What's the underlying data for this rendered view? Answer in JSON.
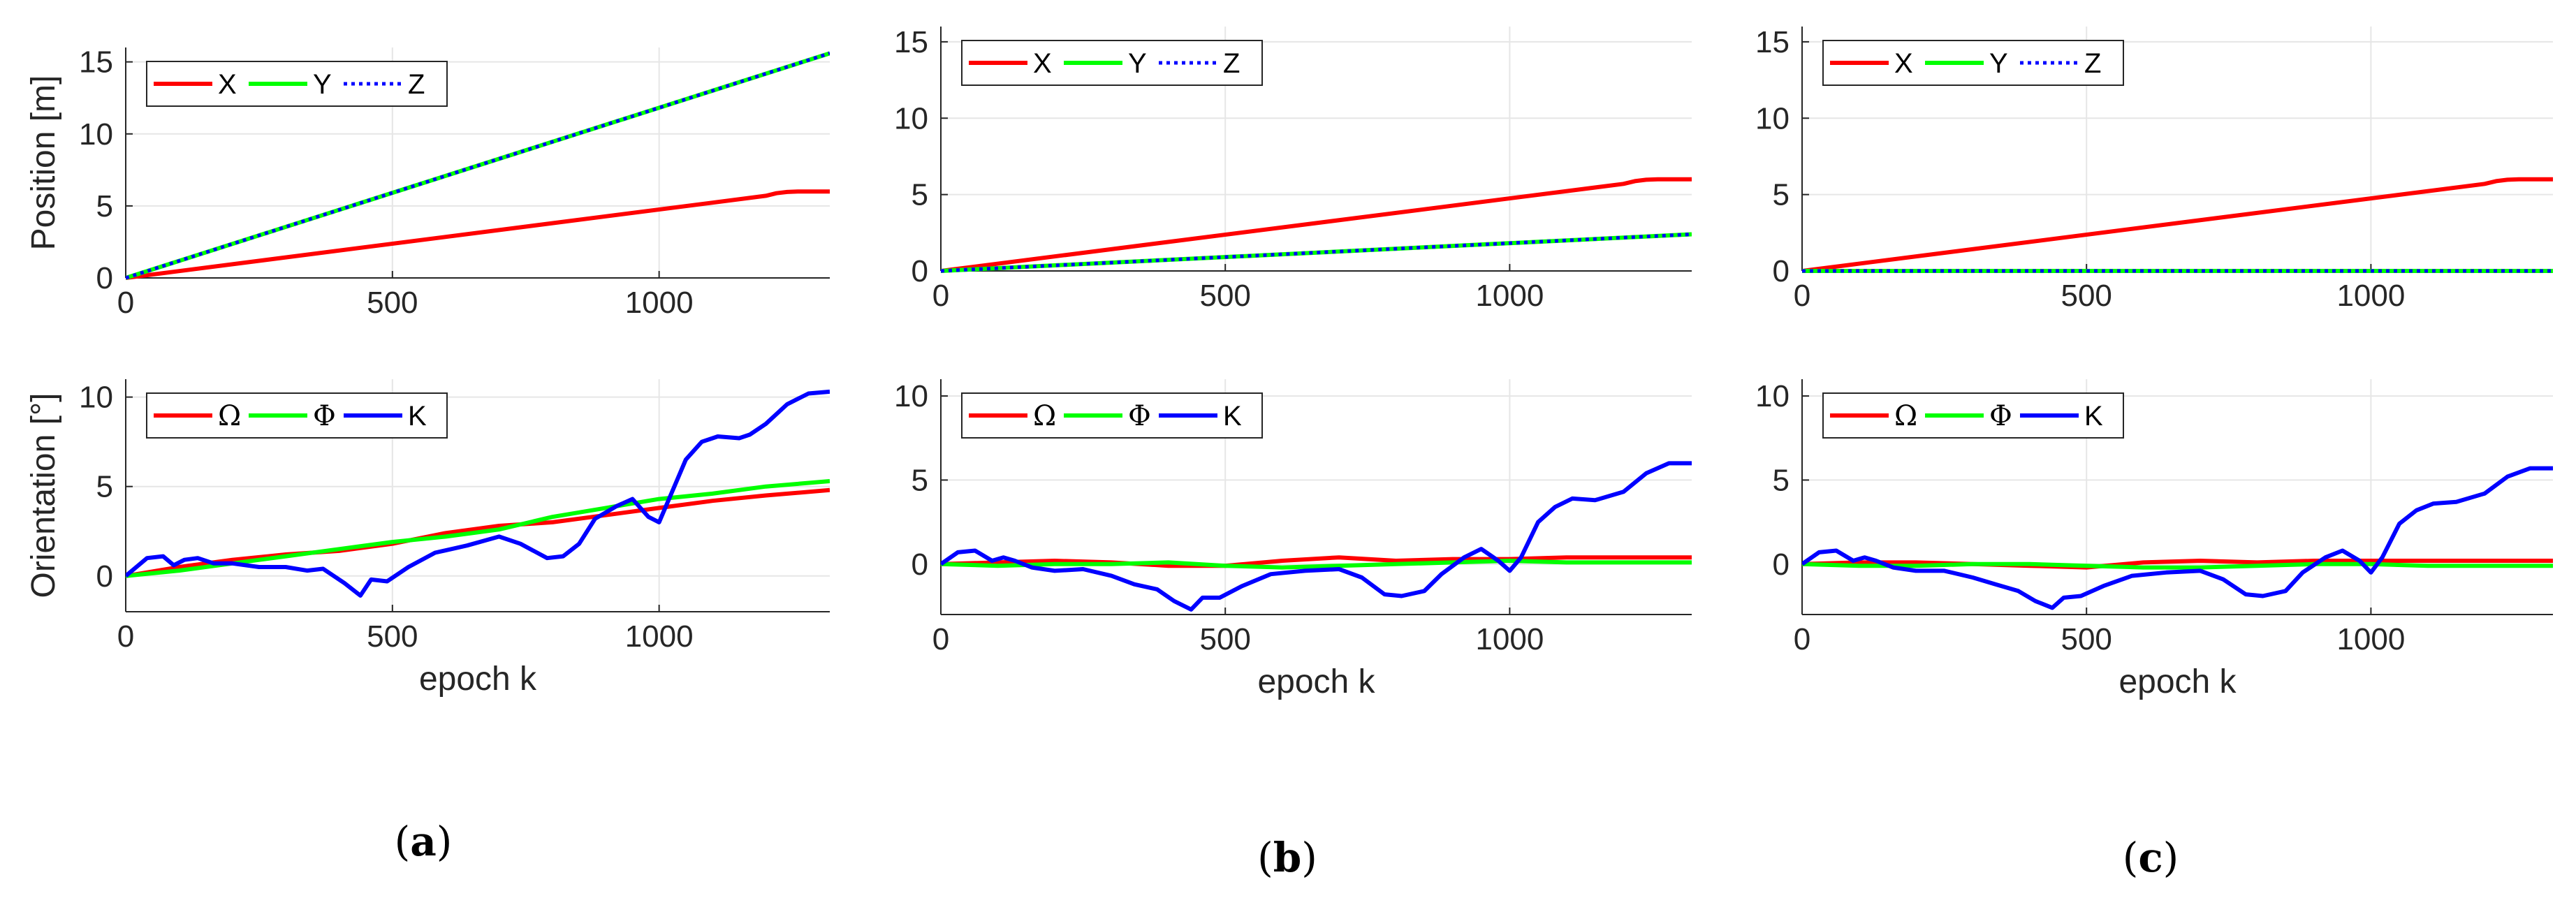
{
  "figure": {
    "captions": [
      "(a)",
      "(b)",
      "(c)"
    ],
    "caption_letters": [
      "a",
      "b",
      "c"
    ]
  },
  "chart_data": [
    {
      "id": "a-position",
      "type": "line",
      "column": 0,
      "row": 0,
      "ylabel": "Position [m]",
      "xlabel": "",
      "xlim": [
        0,
        1320
      ],
      "ylim": [
        0,
        16
      ],
      "xticks": [
        0,
        500,
        1000
      ],
      "yticks": [
        0,
        5,
        10,
        15
      ],
      "grid": true,
      "legend": "top-left",
      "series": [
        {
          "name": "X",
          "color": "#ff0000",
          "dash": "solid",
          "x": [
            0,
            1200,
            1220,
            1240,
            1260,
            1320
          ],
          "y": [
            0,
            5.7,
            5.88,
            5.97,
            6.0,
            6.0
          ]
        },
        {
          "name": "Y",
          "color": "#00ff00",
          "dash": "solid",
          "x": [
            0,
            1320
          ],
          "y": [
            0,
            15.6
          ]
        },
        {
          "name": "Z",
          "color": "#0000ff",
          "dash": "dotted",
          "x": [
            0,
            1320
          ],
          "y": [
            0,
            15.6
          ]
        }
      ]
    },
    {
      "id": "b-position",
      "type": "line",
      "column": 1,
      "row": 0,
      "ylabel": "",
      "xlabel": "",
      "xlim": [
        0,
        1320
      ],
      "ylim": [
        0,
        16
      ],
      "xticks": [
        0,
        500,
        1000
      ],
      "yticks": [
        0,
        5,
        10,
        15
      ],
      "grid": true,
      "legend": "top-left",
      "series": [
        {
          "name": "X",
          "color": "#ff0000",
          "dash": "solid",
          "x": [
            0,
            1200,
            1220,
            1240,
            1260,
            1320
          ],
          "y": [
            0,
            5.7,
            5.88,
            5.97,
            6.0,
            6.0
          ]
        },
        {
          "name": "Y",
          "color": "#00ff00",
          "dash": "solid",
          "x": [
            0,
            1320
          ],
          "y": [
            0,
            2.4
          ]
        },
        {
          "name": "Z",
          "color": "#0000ff",
          "dash": "dotted",
          "x": [
            0,
            1320
          ],
          "y": [
            0,
            2.4
          ]
        }
      ]
    },
    {
      "id": "c-position",
      "type": "line",
      "column": 2,
      "row": 0,
      "ylabel": "",
      "xlabel": "",
      "xlim": [
        0,
        1320
      ],
      "ylim": [
        0,
        16
      ],
      "xticks": [
        0,
        500,
        1000
      ],
      "yticks": [
        0,
        5,
        10,
        15
      ],
      "grid": true,
      "legend": "top-left",
      "series": [
        {
          "name": "X",
          "color": "#ff0000",
          "dash": "solid",
          "x": [
            0,
            1200,
            1220,
            1240,
            1260,
            1320
          ],
          "y": [
            0,
            5.7,
            5.88,
            5.97,
            6.0,
            6.0
          ]
        },
        {
          "name": "Y",
          "color": "#00ff00",
          "dash": "solid",
          "x": [
            0,
            1320
          ],
          "y": [
            0,
            0
          ]
        },
        {
          "name": "Z",
          "color": "#0000ff",
          "dash": "dotted",
          "x": [
            0,
            1320
          ],
          "y": [
            0,
            0
          ]
        }
      ]
    },
    {
      "id": "a-orientation",
      "type": "line",
      "column": 0,
      "row": 1,
      "ylabel": "Orientation [°]",
      "xlabel": "epoch k",
      "xlim": [
        0,
        1320
      ],
      "ylim": [
        -2,
        11
      ],
      "xticks": [
        0,
        500,
        1000
      ],
      "yticks": [
        0,
        5,
        10
      ],
      "grid": true,
      "legend": "top-left",
      "series": [
        {
          "name": "Ω",
          "color": "#ff0000",
          "dash": "solid",
          "x": [
            0,
            100,
            200,
            300,
            400,
            500,
            600,
            700,
            800,
            900,
            1000,
            1100,
            1200,
            1320
          ],
          "y": [
            0,
            0.5,
            0.9,
            1.2,
            1.4,
            1.8,
            2.4,
            2.8,
            3.0,
            3.4,
            3.8,
            4.2,
            4.5,
            4.8
          ]
        },
        {
          "name": "Φ",
          "color": "#00ff00",
          "dash": "solid",
          "x": [
            0,
            100,
            200,
            300,
            400,
            500,
            600,
            700,
            800,
            900,
            1000,
            1100,
            1200,
            1320
          ],
          "y": [
            0,
            0.3,
            0.7,
            1.1,
            1.5,
            1.9,
            2.2,
            2.6,
            3.3,
            3.8,
            4.3,
            4.6,
            5.0,
            5.3
          ]
        },
        {
          "name": "K",
          "color": "#0000ff",
          "dash": "solid",
          "x": [
            0,
            40,
            70,
            90,
            110,
            135,
            165,
            200,
            250,
            300,
            340,
            370,
            410,
            440,
            460,
            490,
            530,
            580,
            640,
            700,
            740,
            790,
            820,
            850,
            880,
            920,
            950,
            980,
            1000,
            1020,
            1050,
            1080,
            1110,
            1150,
            1170,
            1200,
            1240,
            1280,
            1320
          ],
          "y": [
            0,
            1.0,
            1.1,
            0.6,
            0.9,
            1.0,
            0.7,
            0.7,
            0.5,
            0.5,
            0.3,
            0.4,
            -0.4,
            -1.1,
            -0.2,
            -0.3,
            0.5,
            1.3,
            1.7,
            2.2,
            1.8,
            1.0,
            1.1,
            1.8,
            3.2,
            3.9,
            4.3,
            3.3,
            3.0,
            4.4,
            6.5,
            7.5,
            7.8,
            7.7,
            7.9,
            8.5,
            9.6,
            10.2,
            10.3
          ]
        }
      ]
    },
    {
      "id": "b-orientation",
      "type": "line",
      "column": 1,
      "row": 1,
      "ylabel": "",
      "xlabel": "epoch k",
      "xlim": [
        0,
        1320
      ],
      "ylim": [
        -3,
        11
      ],
      "xticks": [
        0,
        500,
        1000
      ],
      "yticks": [
        0,
        5,
        10
      ],
      "grid": true,
      "legend": "top-left",
      "series": [
        {
          "name": "Ω",
          "color": "#ff0000",
          "dash": "solid",
          "x": [
            0,
            100,
            200,
            300,
            400,
            500,
            600,
            700,
            800,
            900,
            1000,
            1100,
            1200,
            1320
          ],
          "y": [
            0,
            0.1,
            0.2,
            0.1,
            -0.1,
            -0.1,
            0.2,
            0.4,
            0.2,
            0.3,
            0.3,
            0.4,
            0.4,
            0.4
          ]
        },
        {
          "name": "Φ",
          "color": "#00ff00",
          "dash": "solid",
          "x": [
            0,
            100,
            200,
            300,
            400,
            500,
            600,
            700,
            800,
            900,
            1000,
            1100,
            1200,
            1320
          ],
          "y": [
            0,
            -0.1,
            0.0,
            0.0,
            0.1,
            -0.1,
            -0.2,
            -0.1,
            0.0,
            0.1,
            0.2,
            0.1,
            0.1,
            0.1
          ]
        },
        {
          "name": "K",
          "color": "#0000ff",
          "dash": "solid",
          "x": [
            0,
            30,
            60,
            90,
            110,
            130,
            160,
            200,
            250,
            300,
            340,
            380,
            410,
            440,
            460,
            490,
            530,
            580,
            640,
            700,
            740,
            780,
            810,
            850,
            880,
            920,
            950,
            980,
            1000,
            1020,
            1050,
            1080,
            1110,
            1150,
            1200,
            1240,
            1280,
            1320
          ],
          "y": [
            0,
            0.7,
            0.8,
            0.2,
            0.4,
            0.2,
            -0.2,
            -0.4,
            -0.3,
            -0.7,
            -1.2,
            -1.5,
            -2.2,
            -2.7,
            -2.0,
            -2.0,
            -1.3,
            -0.6,
            -0.4,
            -0.3,
            -0.8,
            -1.8,
            -1.9,
            -1.6,
            -0.6,
            0.4,
            0.9,
            0.2,
            -0.4,
            0.4,
            2.5,
            3.4,
            3.9,
            3.8,
            4.3,
            5.4,
            6.0,
            6.0
          ]
        }
      ]
    },
    {
      "id": "c-orientation",
      "type": "line",
      "column": 2,
      "row": 1,
      "ylabel": "",
      "xlabel": "epoch k",
      "xlim": [
        0,
        1320
      ],
      "ylim": [
        -3,
        11
      ],
      "xticks": [
        0,
        500,
        1000
      ],
      "yticks": [
        0,
        5,
        10
      ],
      "grid": true,
      "legend": "top-left",
      "series": [
        {
          "name": "Ω",
          "color": "#ff0000",
          "dash": "solid",
          "x": [
            0,
            100,
            200,
            300,
            400,
            500,
            600,
            700,
            800,
            900,
            1000,
            1100,
            1200,
            1320
          ],
          "y": [
            0,
            0.1,
            0.1,
            0.0,
            -0.1,
            -0.2,
            0.1,
            0.2,
            0.1,
            0.2,
            0.2,
            0.2,
            0.2,
            0.2
          ]
        },
        {
          "name": "Φ",
          "color": "#00ff00",
          "dash": "solid",
          "x": [
            0,
            100,
            200,
            300,
            400,
            500,
            600,
            700,
            800,
            900,
            1000,
            1100,
            1200,
            1320
          ],
          "y": [
            0,
            -0.1,
            -0.1,
            0.0,
            0.0,
            -0.1,
            -0.2,
            -0.2,
            -0.1,
            0.0,
            0.0,
            -0.1,
            -0.1,
            -0.1
          ]
        },
        {
          "name": "K",
          "color": "#0000ff",
          "dash": "solid",
          "x": [
            0,
            30,
            60,
            90,
            110,
            130,
            160,
            200,
            250,
            300,
            340,
            380,
            410,
            440,
            460,
            490,
            530,
            580,
            640,
            700,
            740,
            780,
            810,
            850,
            880,
            920,
            950,
            980,
            1000,
            1020,
            1050,
            1080,
            1110,
            1150,
            1200,
            1240,
            1280,
            1320
          ],
          "y": [
            0,
            0.7,
            0.8,
            0.2,
            0.4,
            0.2,
            -0.2,
            -0.4,
            -0.4,
            -0.8,
            -1.2,
            -1.6,
            -2.2,
            -2.6,
            -2.0,
            -1.9,
            -1.3,
            -0.7,
            -0.5,
            -0.4,
            -0.9,
            -1.8,
            -1.9,
            -1.6,
            -0.5,
            0.4,
            0.8,
            0.2,
            -0.5,
            0.4,
            2.4,
            3.2,
            3.6,
            3.7,
            4.2,
            5.2,
            5.7,
            5.7
          ]
        }
      ]
    }
  ]
}
